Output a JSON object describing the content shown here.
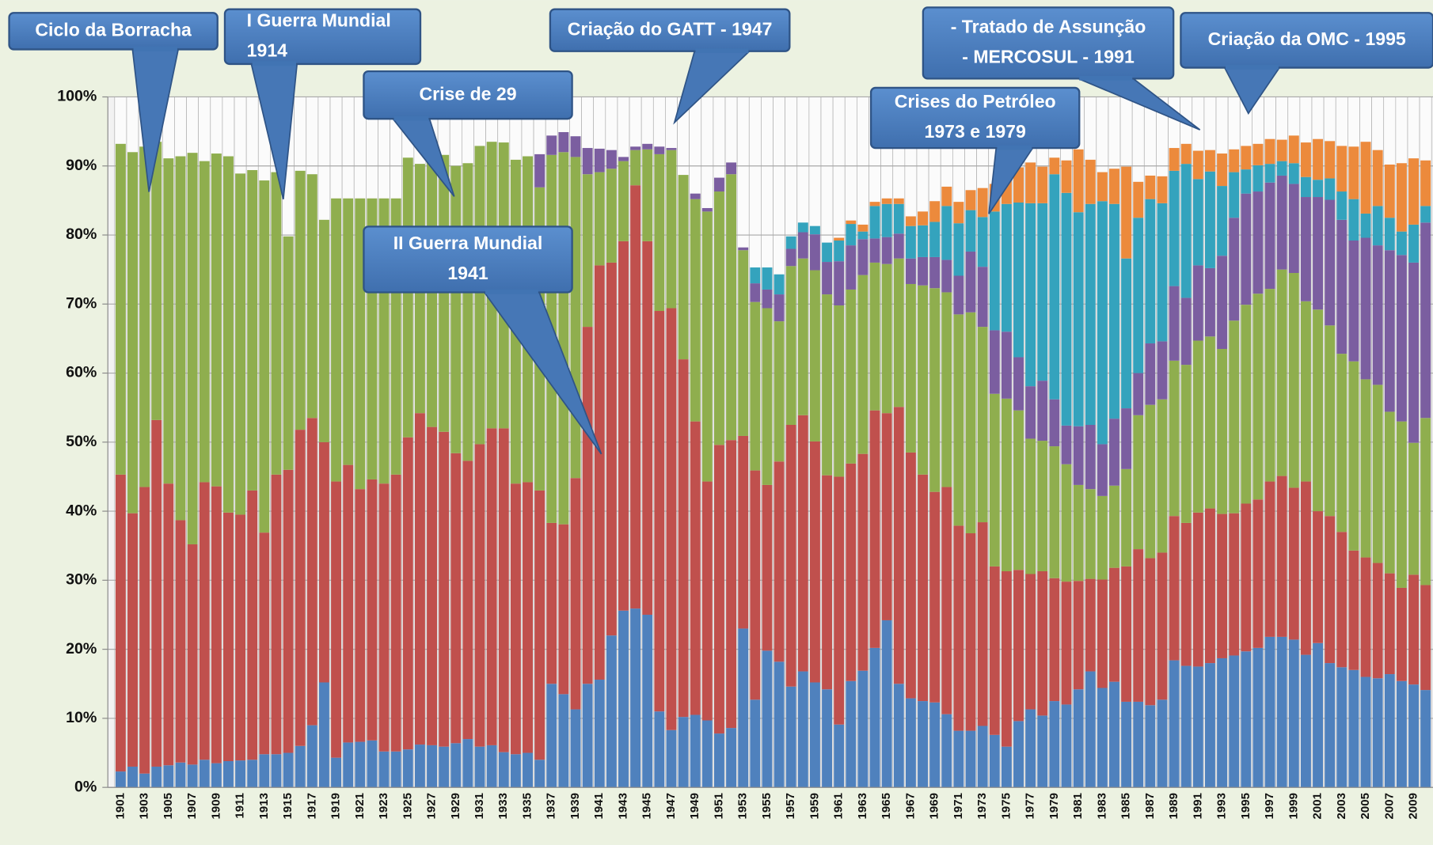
{
  "chart_data": {
    "type": "stacked_bar",
    "categories": [
      "1901",
      null,
      "1903",
      null,
      "1905",
      null,
      "1907",
      null,
      "1909",
      null,
      "1911",
      null,
      "1913",
      null,
      "1915",
      null,
      "1917",
      null,
      "1919",
      null,
      "1921",
      null,
      "1923",
      null,
      "1925",
      null,
      "1927",
      null,
      "1929",
      null,
      "1931",
      null,
      "1933",
      null,
      "1935",
      null,
      "1937",
      null,
      "1939",
      null,
      "1941",
      null,
      "1943",
      null,
      "1945",
      null,
      "1947",
      null,
      "1949",
      null,
      "1951",
      null,
      "1953",
      null,
      "1955",
      null,
      "1957",
      null,
      "1959",
      null,
      "1961",
      null,
      "1963",
      null,
      "1965",
      null,
      "1967",
      null,
      "1969",
      null,
      "1971",
      null,
      "1973",
      null,
      "1975",
      null,
      "1977",
      null,
      "1979",
      null,
      "1981",
      null,
      "1983",
      null,
      "1985",
      null,
      "1987",
      null,
      "1989",
      null,
      "1991",
      null,
      "1993",
      null,
      "1995",
      null,
      "1997",
      null,
      "1999",
      null,
      "2001",
      null,
      "2003",
      null,
      "2005",
      null,
      "2007",
      null,
      "2009",
      null
    ],
    "series": [
      {
        "color": "#4f81bd",
        "values": [
          2.3,
          3,
          2,
          3,
          3.2,
          3.6,
          3.3,
          4,
          3.5,
          3.8,
          3.9,
          4,
          4.8,
          4.8,
          5,
          6,
          9,
          15.2,
          4.3,
          6.5,
          6.6,
          6.8,
          5.2,
          5.2,
          5.5,
          6.2,
          6.1,
          5.9,
          6.4,
          7,
          5.9,
          6.1,
          5.1,
          4.8,
          5,
          4,
          15,
          13.5,
          11.3,
          15,
          15.6,
          22,
          25.6,
          25.9,
          25,
          11,
          8.3,
          10.2,
          10.5,
          9.7,
          7.8,
          8.6,
          23,
          12.7,
          19.8,
          18.2,
          14.6,
          16.8,
          15.2,
          14.2,
          9.1,
          15.4,
          16.9,
          20.2,
          24.2,
          15,
          12.9,
          12.5,
          12.3,
          10.6,
          8.2,
          8.2,
          8.9,
          7.6,
          5.9,
          9.6,
          11.3,
          10.4,
          12.5,
          12,
          14.2,
          16.8,
          14.4,
          15.3,
          12.4,
          12.4,
          11.9,
          12.7,
          18.4,
          17.6,
          17.5,
          18,
          18.7,
          19.1,
          19.7,
          20.2,
          21.8,
          21.8,
          21.4,
          19.2,
          20.9,
          18,
          17.4,
          17,
          16,
          15.8,
          16.4,
          15.4,
          14.9,
          14.1
        ]
      },
      {
        "color": "#c0504d",
        "values": [
          43,
          36.7,
          41.5,
          50.2,
          40.8,
          35.1,
          31.9,
          40.2,
          40.1,
          36,
          35.6,
          39,
          32.1,
          40.5,
          41,
          45.8,
          44.5,
          34.8,
          40,
          40.2,
          36.6,
          37.8,
          38.8,
          40.1,
          45.2,
          48,
          46.1,
          45.6,
          42,
          40.3,
          43.8,
          45.9,
          46.9,
          39.2,
          39.2,
          39,
          23.3,
          24.6,
          33.5,
          51.7,
          60,
          54,
          53.5,
          61.3,
          54.1,
          58,
          61.1,
          51.8,
          42.5,
          34.6,
          41.8,
          41.7,
          27.9,
          33.2,
          24,
          29,
          37.9,
          37.1,
          34.9,
          31,
          35.9,
          31.5,
          31.4,
          34.4,
          30,
          40.1,
          35.6,
          32.8,
          30.5,
          32.9,
          29.7,
          28.6,
          29.5,
          24.4,
          25.4,
          21.9,
          19.6,
          20.9,
          17.8,
          17.8,
          15.7,
          13.4,
          15.7,
          16.5,
          19.6,
          22.1,
          21.3,
          21.3,
          20.9,
          20.7,
          22.3,
          22.4,
          20.9,
          20.6,
          21.4,
          21.5,
          22.5,
          23.3,
          22,
          25.1,
          19.1,
          21.3,
          19.6,
          17.3,
          17.3,
          16.7,
          14.6,
          13.5,
          15.9,
          15.2
        ]
      },
      {
        "color": "#8fae4e",
        "values": [
          47.9,
          52.3,
          49.3,
          40.3,
          47.1,
          52.7,
          56.7,
          46.5,
          48.2,
          51.6,
          49.4,
          46.4,
          51,
          43.8,
          33.8,
          37.5,
          35.3,
          32.2,
          41,
          38.6,
          42.1,
          40.7,
          41.3,
          40,
          40.5,
          36.1,
          38.4,
          40.1,
          41.6,
          43.1,
          43.2,
          41.5,
          41.4,
          46.9,
          47.2,
          43.9,
          53.3,
          53.9,
          46.5,
          22.1,
          13.5,
          13.6,
          11.6,
          5.1,
          13.3,
          22.7,
          22.9,
          26.7,
          32.2,
          39.1,
          36.7,
          38.5,
          26.9,
          24.4,
          25.6,
          20.3,
          23,
          22.7,
          24.8,
          26.2,
          24.8,
          25.2,
          25.9,
          21.4,
          21.6,
          21.5,
          24.4,
          27.4,
          29.5,
          28.2,
          30.6,
          32,
          28.3,
          25,
          25,
          23.1,
          19.6,
          18.9,
          19.1,
          17,
          13.9,
          13,
          12.1,
          11.9,
          14.1,
          19.4,
          22.2,
          22.2,
          22.5,
          22.9,
          24.9,
          24.9,
          23.9,
          27.9,
          28.8,
          29.8,
          27.9,
          29.9,
          31.1,
          26.1,
          29.2,
          27.6,
          25.8,
          27.4,
          25.8,
          25.8,
          23.4,
          24.1,
          19.1,
          24.2
        ]
      },
      {
        "color": "#7b5ea0",
        "values": [
          0,
          0,
          0,
          0,
          0,
          0,
          0,
          0,
          0,
          0,
          0,
          0,
          0,
          0,
          0,
          0,
          0,
          0,
          0,
          0,
          0,
          0,
          0,
          0,
          0,
          0,
          0,
          0,
          0,
          0,
          0,
          0,
          0,
          0,
          0,
          4.8,
          2.8,
          2.9,
          3,
          3.8,
          3.4,
          2.7,
          0.6,
          0.5,
          0.8,
          1.1,
          0.3,
          0,
          0.8,
          0.5,
          2,
          1.7,
          0.4,
          2.7,
          2.7,
          3.9,
          2.5,
          3.8,
          5.2,
          4.7,
          6.4,
          6.4,
          5.2,
          3.5,
          3.9,
          3.6,
          3.7,
          4.1,
          4.5,
          4.7,
          5.6,
          8.8,
          8.7,
          9.2,
          9.7,
          7.7,
          7.6,
          8.7,
          6.8,
          5.6,
          8.5,
          9.3,
          7.5,
          9.7,
          8.8,
          6.1,
          8.9,
          8.4,
          10.8,
          9.7,
          10.9,
          9.9,
          13.5,
          14.9,
          16.1,
          14.8,
          15.4,
          13.6,
          12.9,
          15.1,
          16.3,
          18.2,
          19.4,
          17.5,
          20.5,
          20.2,
          23.4,
          24.1,
          26.1,
          28.3
        ]
      },
      {
        "color": "#34a3bd",
        "values": [
          0,
          0,
          0,
          0,
          0,
          0,
          0,
          0,
          0,
          0,
          0,
          0,
          0,
          0,
          0,
          0,
          0,
          0,
          0,
          0,
          0,
          0,
          0,
          0,
          0,
          0,
          0,
          0,
          0,
          0,
          0,
          0,
          0,
          0,
          0,
          0,
          0,
          0,
          0,
          0,
          0,
          0,
          0,
          0,
          0,
          0,
          0,
          0,
          0,
          0,
          0,
          0,
          0,
          2.3,
          3.2,
          2.9,
          1.8,
          1.4,
          1.2,
          2.8,
          3,
          3.1,
          1.1,
          4.7,
          4.8,
          4.3,
          4.7,
          4.6,
          5.1,
          7.8,
          7.6,
          6,
          7.2,
          17.2,
          18.5,
          22.4,
          26.5,
          25.7,
          32.6,
          33.7,
          31,
          32,
          35.2,
          31.1,
          21.7,
          22.5,
          20.9,
          20,
          16.7,
          19.4,
          12.5,
          14,
          10.1,
          6.6,
          3.5,
          3.8,
          2.7,
          2.1,
          3,
          2.9,
          2.5,
          3.1,
          4.1,
          6,
          3.5,
          5.7,
          4.7,
          3.4,
          5.5,
          2.4
        ]
      },
      {
        "color": "#ec8a3c",
        "values": [
          0,
          0,
          0,
          0,
          0,
          0,
          0,
          0,
          0,
          0,
          0,
          0,
          0,
          0,
          0,
          0,
          0,
          0,
          0,
          0,
          0,
          0,
          0,
          0,
          0,
          0,
          0,
          0,
          0,
          0,
          0,
          0,
          0,
          0,
          0,
          0,
          0,
          0,
          0,
          0,
          0,
          0,
          0,
          0,
          0,
          0,
          0,
          0,
          0,
          0,
          0,
          0,
          0,
          0,
          0,
          0,
          0,
          0,
          0,
          0,
          0.4,
          0.5,
          1,
          0.6,
          0.8,
          0.8,
          1.4,
          2,
          3,
          2.8,
          3.1,
          2.9,
          4.2,
          4,
          4.1,
          5.1,
          5.9,
          5.3,
          2.4,
          4.7,
          9.1,
          6.4,
          4.2,
          5.1,
          13.3,
          5.2,
          3.4,
          3.9,
          3.3,
          2.9,
          4.1,
          3.1,
          4.7,
          3.3,
          3.4,
          3.1,
          3.6,
          3.1,
          4,
          5,
          5.9,
          5.4,
          6.6,
          7.6,
          10.4,
          8.1,
          7.7,
          9.9,
          9.6,
          6.6
        ]
      }
    ],
    "ylim": [
      0,
      100
    ],
    "yticks": [
      {
        "value": 0,
        "label": "0%"
      },
      {
        "value": 10,
        "label": "10%"
      },
      {
        "value": 20,
        "label": "20%"
      },
      {
        "value": 30,
        "label": "30%"
      },
      {
        "value": 40,
        "label": "40%"
      },
      {
        "value": 50,
        "label": "50%"
      },
      {
        "value": 60,
        "label": "60%"
      },
      {
        "value": 70,
        "label": "70%"
      },
      {
        "value": 80,
        "label": "80%"
      },
      {
        "value": 90,
        "label": "90%"
      },
      {
        "value": 100,
        "label": "100%"
      }
    ],
    "grid": true,
    "annotations": [
      {
        "lines": [
          "Ciclo da Borracha"
        ]
      },
      {
        "lines": [
          "I Guerra Mundial",
          "1914"
        ]
      },
      {
        "lines": [
          "Crise de 29"
        ]
      },
      {
        "lines": [
          "Criação do GATT - 1947"
        ]
      },
      {
        "lines": [
          "II Guerra Mundial",
          "1941"
        ]
      },
      {
        "lines": [
          "Crises do Petróleo",
          "1973 e 1979"
        ]
      },
      {
        "lines": [
          "- Tratado de Assunção",
          "- MERCOSUL - 1991"
        ]
      },
      {
        "lines": [
          "Criação da OMC - 1995"
        ]
      }
    ]
  }
}
